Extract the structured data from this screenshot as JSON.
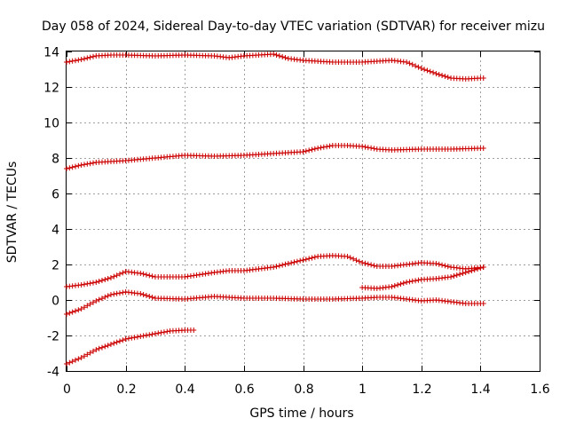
{
  "chart_data": {
    "type": "scatter",
    "title": "Day 058 of 2024, Sidereal Day-to-day VTEC variation (SDTVAR) for receiver mizu",
    "xlabel": "GPS time / hours",
    "ylabel": "SDTVAR / TECUs",
    "xlim": [
      0,
      1.6
    ],
    "ylim": [
      -4,
      14
    ],
    "x_ticks": [
      "0",
      "0.2",
      "0.4",
      "0.6",
      "0.8",
      "1",
      "1.2",
      "1.4",
      "1.6"
    ],
    "y_ticks": [
      "-4",
      "-2",
      "0",
      "2",
      "4",
      "6",
      "8",
      "10",
      "12",
      "14"
    ],
    "grid": true,
    "marker": "plus",
    "marker_color": "#cc0000",
    "series": [
      {
        "name": "arc-1",
        "x": [
          0,
          0.05,
          0.1,
          0.15,
          0.2,
          0.3,
          0.4,
          0.5,
          0.55,
          0.6,
          0.7,
          0.75,
          0.8,
          0.9,
          1.0,
          1.1,
          1.15,
          1.2,
          1.25,
          1.3,
          1.35,
          1.4,
          1.41
        ],
        "y": [
          13.4,
          13.55,
          13.75,
          13.8,
          13.8,
          13.75,
          13.8,
          13.75,
          13.65,
          13.75,
          13.85,
          13.6,
          13.5,
          13.4,
          13.4,
          13.5,
          13.4,
          13.05,
          12.75,
          12.5,
          12.45,
          12.5,
          12.5
        ]
      },
      {
        "name": "arc-2",
        "x": [
          0,
          0.05,
          0.1,
          0.15,
          0.2,
          0.3,
          0.4,
          0.5,
          0.6,
          0.7,
          0.8,
          0.85,
          0.9,
          0.95,
          1.0,
          1.05,
          1.1,
          1.2,
          1.3,
          1.41
        ],
        "y": [
          7.4,
          7.6,
          7.75,
          7.8,
          7.85,
          8.0,
          8.15,
          8.1,
          8.15,
          8.25,
          8.35,
          8.55,
          8.7,
          8.7,
          8.65,
          8.5,
          8.45,
          8.5,
          8.5,
          8.55
        ]
      },
      {
        "name": "arc-3",
        "x": [
          0,
          0.05,
          0.1,
          0.15,
          0.2,
          0.25,
          0.3,
          0.4,
          0.5,
          0.55,
          0.6,
          0.7,
          0.8,
          0.85,
          0.9,
          0.95,
          1.0,
          1.05,
          1.1,
          1.15,
          1.2,
          1.25,
          1.3,
          1.35,
          1.41
        ],
        "y": [
          0.75,
          0.85,
          1.0,
          1.25,
          1.6,
          1.5,
          1.3,
          1.3,
          1.55,
          1.65,
          1.65,
          1.85,
          2.25,
          2.45,
          2.5,
          2.45,
          2.1,
          1.9,
          1.9,
          2.0,
          2.1,
          2.05,
          1.85,
          1.75,
          1.85
        ]
      },
      {
        "name": "arc-4",
        "x": [
          0,
          0.05,
          0.1,
          0.15,
          0.2,
          0.25,
          0.3,
          0.4,
          0.5,
          0.6,
          0.7,
          0.8,
          0.9,
          1.0,
          1.05,
          1.1,
          1.2,
          1.25,
          1.3,
          1.35,
          1.41
        ],
        "y": [
          -0.8,
          -0.5,
          -0.05,
          0.3,
          0.45,
          0.35,
          0.1,
          0.05,
          0.2,
          0.1,
          0.1,
          0.05,
          0.05,
          0.1,
          0.15,
          0.15,
          -0.05,
          0.0,
          -0.1,
          -0.2,
          -0.2
        ]
      },
      {
        "name": "arc-5",
        "x": [
          1.0,
          1.05,
          1.1,
          1.15,
          1.2,
          1.25,
          1.3,
          1.35,
          1.41
        ],
        "y": [
          0.7,
          0.65,
          0.75,
          1.0,
          1.15,
          1.2,
          1.3,
          1.55,
          1.85
        ]
      },
      {
        "name": "arc-6",
        "x": [
          0,
          0.05,
          0.1,
          0.15,
          0.2,
          0.25,
          0.3,
          0.35,
          0.4,
          0.43
        ],
        "y": [
          -3.6,
          -3.25,
          -2.8,
          -2.5,
          -2.2,
          -2.05,
          -1.9,
          -1.75,
          -1.7,
          -1.7
        ]
      }
    ]
  }
}
